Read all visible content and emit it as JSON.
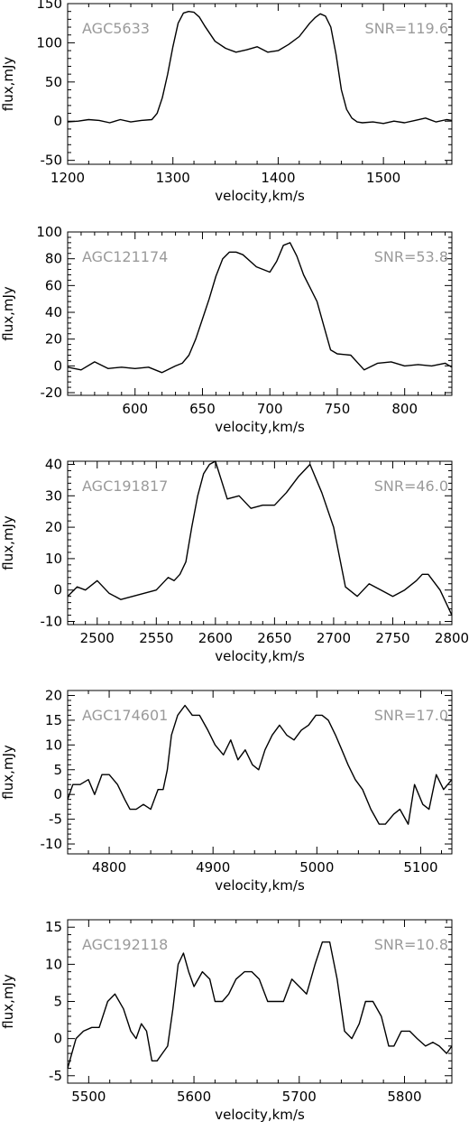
{
  "chart_data": [
    {
      "type": "line",
      "galaxy": "AGC5633",
      "snr_label": "SNR=119.6",
      "xlabel": "velocity,km/s",
      "ylabel": "flux,mJy",
      "xlim": [
        1200,
        1565
      ],
      "ylim": [
        -55,
        150
      ],
      "xticks": [
        1200,
        1300,
        1400,
        1500
      ],
      "yticks": [
        -50,
        0,
        50,
        100,
        150
      ],
      "series": [
        {
          "x": [
            1200,
            1210,
            1220,
            1230,
            1240,
            1250,
            1260,
            1270,
            1280,
            1285,
            1290,
            1295,
            1300,
            1305,
            1310,
            1315,
            1320,
            1325,
            1330,
            1340,
            1350,
            1360,
            1370,
            1380,
            1390,
            1400,
            1410,
            1420,
            1430,
            1435,
            1440,
            1445,
            1450,
            1455,
            1460,
            1465,
            1470,
            1475,
            1480,
            1490,
            1500,
            1510,
            1520,
            1530,
            1540,
            1550,
            1560,
            1565
          ],
          "y": [
            -1,
            0,
            2,
            1,
            -2,
            2,
            -1,
            1,
            2,
            10,
            30,
            60,
            95,
            125,
            138,
            140,
            139,
            133,
            122,
            102,
            93,
            88,
            91,
            95,
            88,
            90,
            98,
            108,
            125,
            132,
            137,
            134,
            120,
            85,
            40,
            15,
            4,
            -1,
            -2,
            -1,
            -3,
            0,
            -2,
            1,
            4,
            -1,
            2,
            1
          ]
        }
      ]
    },
    {
      "type": "line",
      "galaxy": "AGC121174",
      "snr_label": "SNR=53.8",
      "xlabel": "velocity,km/s",
      "ylabel": "flux,mJy",
      "xlim": [
        550,
        835
      ],
      "ylim": [
        -22,
        100
      ],
      "xticks": [
        600,
        650,
        700,
        750,
        800
      ],
      "yticks": [
        -20,
        0,
        20,
        40,
        60,
        80,
        100
      ],
      "series": [
        {
          "x": [
            550,
            560,
            570,
            580,
            590,
            600,
            610,
            620,
            630,
            635,
            640,
            645,
            650,
            655,
            660,
            665,
            670,
            675,
            680,
            690,
            700,
            705,
            710,
            715,
            720,
            725,
            730,
            735,
            740,
            745,
            750,
            760,
            770,
            780,
            790,
            800,
            810,
            820,
            830,
            835
          ],
          "y": [
            -1,
            -3,
            3,
            -2,
            -1,
            -2,
            -1,
            -5,
            0,
            2,
            8,
            20,
            35,
            50,
            67,
            80,
            85,
            85,
            83,
            74,
            70,
            78,
            90,
            92,
            82,
            68,
            58,
            48,
            30,
            12,
            9,
            8,
            -3,
            2,
            3,
            0,
            1,
            0,
            2,
            -1
          ]
        }
      ]
    },
    {
      "type": "line",
      "galaxy": "AGC191817",
      "snr_label": "SNR=46.0",
      "xlabel": "velocity,km/s",
      "ylabel": "flux,mJy",
      "xlim": [
        2475,
        2800
      ],
      "ylim": [
        -11,
        41
      ],
      "xticks": [
        2500,
        2550,
        2600,
        2650,
        2700,
        2750,
        2800
      ],
      "yticks": [
        -10,
        0,
        10,
        20,
        30,
        40
      ],
      "series": [
        {
          "x": [
            2475,
            2483,
            2490,
            2500,
            2510,
            2520,
            2530,
            2540,
            2550,
            2560,
            2565,
            2570,
            2575,
            2580,
            2585,
            2590,
            2595,
            2600,
            2610,
            2620,
            2630,
            2640,
            2650,
            2660,
            2670,
            2680,
            2690,
            2700,
            2710,
            2720,
            2730,
            2740,
            2750,
            2760,
            2770,
            2775,
            2780,
            2790,
            2800
          ],
          "y": [
            -2,
            1,
            0,
            3,
            -1,
            -3,
            -2,
            -1,
            0,
            4,
            3,
            5,
            9,
            20,
            30,
            37,
            40,
            41,
            29,
            30,
            26,
            27,
            27,
            31,
            36,
            40,
            31,
            20,
            1,
            -2,
            2,
            0,
            -2,
            0,
            3,
            5,
            5,
            0,
            -8
          ]
        }
      ]
    },
    {
      "type": "line",
      "galaxy": "AGC174601",
      "snr_label": "SNR=17.0",
      "xlabel": "velocity,km/s",
      "ylabel": "flux,mJy",
      "xlim": [
        4760,
        5130
      ],
      "ylim": [
        -12,
        21
      ],
      "xticks": [
        4800,
        4900,
        5000,
        5100
      ],
      "yticks": [
        -10,
        -5,
        0,
        5,
        10,
        15,
        20
      ],
      "series": [
        {
          "x": [
            4760,
            4765,
            4772,
            4780,
            4786,
            4793,
            4800,
            4808,
            4815,
            4820,
            4826,
            4833,
            4840,
            4847,
            4852,
            4856,
            4860,
            4866,
            4873,
            4880,
            4887,
            4895,
            4902,
            4910,
            4917,
            4924,
            4931,
            4938,
            4944,
            4950,
            4957,
            4964,
            4971,
            4978,
            4985,
            4992,
            4999,
            5005,
            5011,
            5018,
            5024,
            5030,
            5037,
            5044,
            5052,
            5060,
            5066,
            5074,
            5080,
            5088,
            5094,
            5102,
            5108,
            5115,
            5122,
            5130
          ],
          "y": [
            -1,
            2,
            2,
            3,
            0,
            4,
            4,
            2,
            -1,
            -3,
            -3,
            -2,
            -3,
            1,
            1,
            5,
            12,
            16,
            18,
            16,
            16,
            13,
            10,
            8,
            11,
            7,
            9,
            6,
            5,
            9,
            12,
            14,
            12,
            11,
            13,
            14,
            16,
            16,
            15,
            12,
            9,
            6,
            3,
            1,
            -3,
            -6,
            -6,
            -4,
            -3,
            -6,
            2,
            -2,
            -3,
            4,
            1,
            3
          ]
        }
      ]
    },
    {
      "type": "line",
      "galaxy": "AGC192118",
      "snr_label": "SNR=10.8",
      "xlabel": "velocity,km/s",
      "ylabel": "flux,mJy",
      "xlim": [
        5480,
        5845
      ],
      "ylim": [
        -6,
        16
      ],
      "xticks": [
        5500,
        5600,
        5700,
        5800
      ],
      "yticks": [
        -5,
        0,
        5,
        10,
        15
      ],
      "series": [
        {
          "x": [
            5480,
            5488,
            5495,
            5503,
            5510,
            5518,
            5525,
            5533,
            5540,
            5545,
            5550,
            5555,
            5560,
            5565,
            5570,
            5575,
            5580,
            5585,
            5590,
            5595,
            5600,
            5608,
            5615,
            5620,
            5627,
            5633,
            5640,
            5648,
            5655,
            5662,
            5670,
            5678,
            5685,
            5693,
            5700,
            5707,
            5715,
            5722,
            5729,
            5736,
            5743,
            5750,
            5757,
            5763,
            5770,
            5778,
            5785,
            5790,
            5797,
            5805,
            5812,
            5820,
            5827,
            5833,
            5840,
            5845
          ],
          "y": [
            -4,
            0,
            1,
            1.5,
            1.5,
            5,
            6,
            4,
            1,
            0,
            2,
            1,
            -3,
            -3,
            -2,
            -1,
            4,
            10,
            11.5,
            9,
            7,
            9,
            8,
            5,
            5,
            6,
            8,
            9,
            9,
            8,
            5,
            5,
            5,
            8,
            7,
            6,
            10,
            13,
            13,
            8,
            1,
            0,
            2,
            5,
            5,
            3,
            -1,
            -1,
            1,
            1,
            0,
            -1,
            -0.5,
            -1,
            -2,
            -1
          ]
        }
      ]
    }
  ]
}
